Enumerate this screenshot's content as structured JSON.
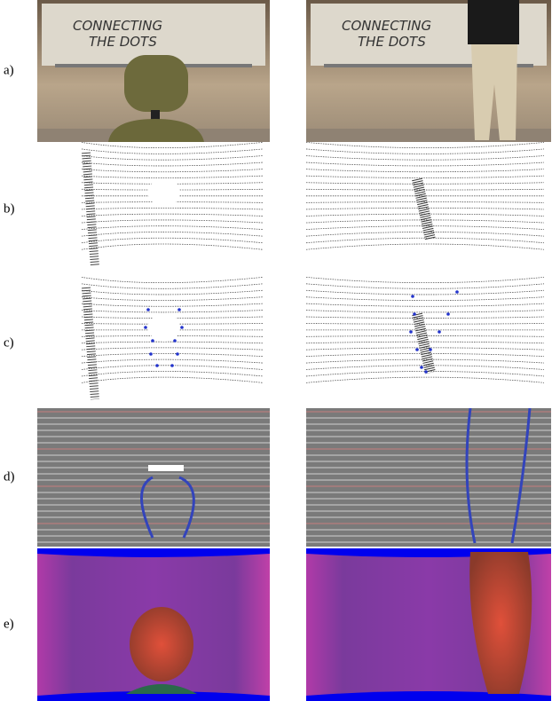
{
  "rows": [
    {
      "label": "a)"
    },
    {
      "label": "b)"
    },
    {
      "label": "c)"
    },
    {
      "label": "d)"
    },
    {
      "label": "e)"
    }
  ],
  "whiteboard": {
    "line1": "CONNECTING",
    "line2": "THE DOTS"
  }
}
